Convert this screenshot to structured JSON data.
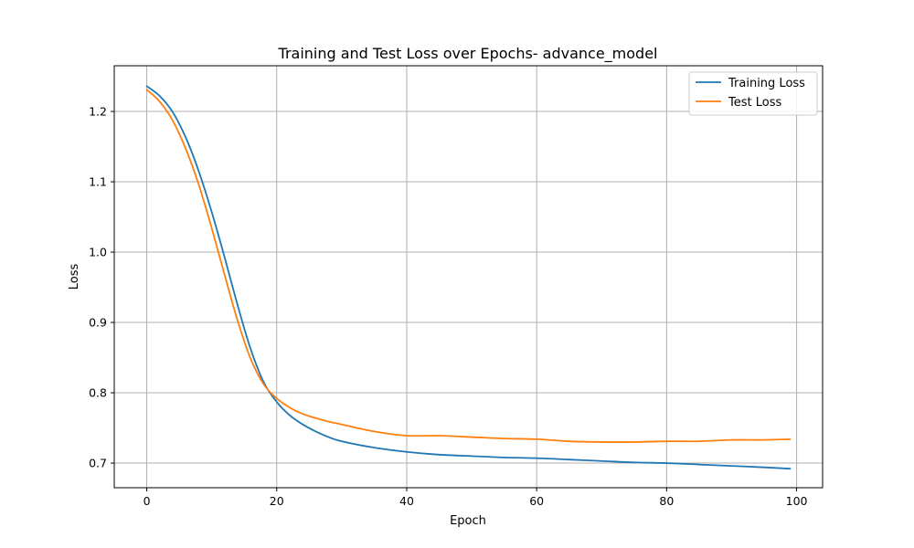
{
  "chart_data": {
    "type": "line",
    "title": "Training and Test Loss over Epochs- advance_model",
    "xlabel": "Epoch",
    "ylabel": "Loss",
    "xlim": [
      -5,
      104
    ],
    "ylim": [
      0.665,
      1.265
    ],
    "x_ticks": [
      0,
      20,
      40,
      60,
      80,
      100
    ],
    "y_ticks": [
      0.7,
      0.8,
      0.9,
      1.0,
      1.1,
      1.2
    ],
    "x_tick_labels": [
      "0",
      "20",
      "40",
      "60",
      "80",
      "100"
    ],
    "y_tick_labels": [
      "0.7",
      "0.8",
      "0.9",
      "1.0",
      "1.1",
      "1.2"
    ],
    "grid": true,
    "legend_position": "top-right",
    "x": [
      0,
      2,
      4,
      6,
      8,
      10,
      12,
      14,
      16,
      18,
      20,
      22,
      24,
      26,
      28,
      30,
      35,
      40,
      45,
      50,
      55,
      60,
      65,
      70,
      75,
      80,
      85,
      90,
      95,
      99
    ],
    "series": [
      {
        "name": "Training Loss",
        "color": "#1f77b4",
        "values": [
          1.236,
          1.222,
          1.199,
          1.163,
          1.115,
          1.057,
          0.992,
          0.924,
          0.862,
          0.815,
          0.787,
          0.768,
          0.755,
          0.745,
          0.737,
          0.731,
          0.722,
          0.716,
          0.712,
          0.71,
          0.708,
          0.707,
          0.705,
          0.703,
          0.701,
          0.7,
          0.698,
          0.696,
          0.694,
          0.692
        ]
      },
      {
        "name": "Test Loss",
        "color": "#ff7f0e",
        "values": [
          1.231,
          1.214,
          1.187,
          1.147,
          1.096,
          1.034,
          0.967,
          0.902,
          0.848,
          0.812,
          0.792,
          0.779,
          0.77,
          0.764,
          0.759,
          0.755,
          0.745,
          0.739,
          0.739,
          0.737,
          0.735,
          0.734,
          0.731,
          0.73,
          0.73,
          0.731,
          0.731,
          0.733,
          0.733,
          0.734
        ]
      }
    ]
  }
}
